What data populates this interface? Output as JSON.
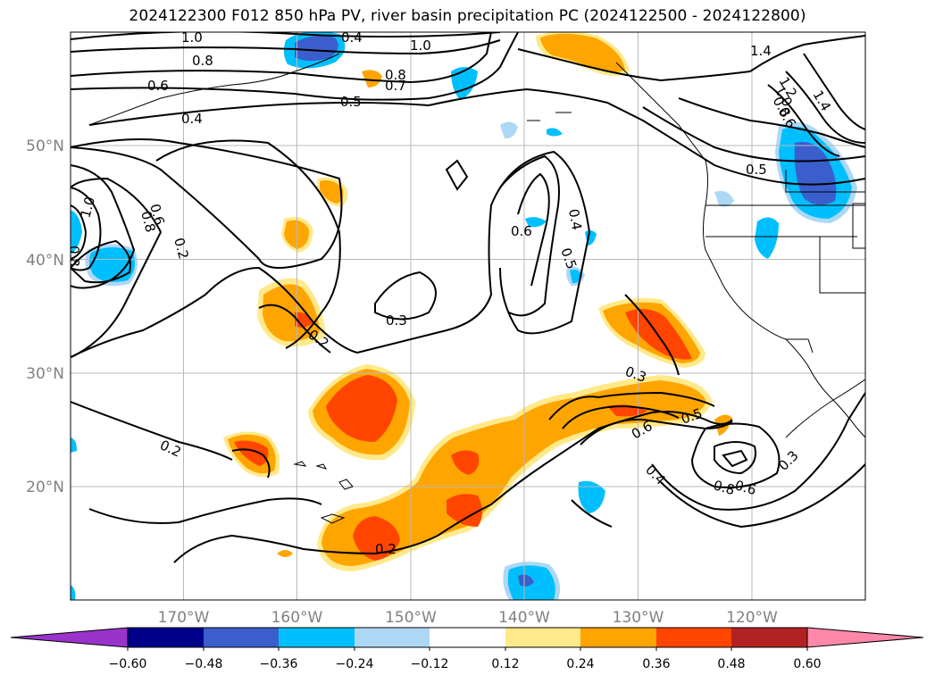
{
  "title": "2024122300 F012 850 hPa PV, river basin precipitation PC (2024122500 - 2024122800)",
  "map": {
    "lat_labels": [
      "50°N",
      "40°N",
      "30°N",
      "20°N"
    ],
    "lon_labels": [
      "170°W",
      "160°W",
      "150°W",
      "140°W",
      "130°W",
      "120°W"
    ],
    "contour_labels": [
      "1.0",
      "0.8",
      "0.6",
      "0.4",
      "1.0",
      "0.8",
      "0.7",
      "0.5",
      "0.4",
      "1.4",
      "1.2",
      "1.0",
      "0.8",
      "0.6",
      "1.4",
      "0.5",
      "1.0",
      "0.8",
      "0.6",
      "0.8",
      "0.2",
      "0.6",
      "0.4",
      "0.5",
      "0.3",
      "0.2",
      "0.3",
      "0.6",
      "0.5",
      "0.4",
      "0.2",
      "0.8",
      "0.6",
      "0.3",
      "0.2"
    ]
  },
  "colorbar": {
    "ticks": [
      "−0.60",
      "−0.48",
      "−0.36",
      "−0.24",
      "−0.12",
      "0.12",
      "0.24",
      "0.36",
      "0.48",
      "0.60"
    ],
    "colors": [
      "#9933cc",
      "#00008b",
      "#3a5fcd",
      "#00bfff",
      "#add8f5",
      "#ffffff",
      "#ffe98a",
      "#ffa500",
      "#ff4500",
      "#b22222",
      "#ff88aa"
    ]
  }
}
